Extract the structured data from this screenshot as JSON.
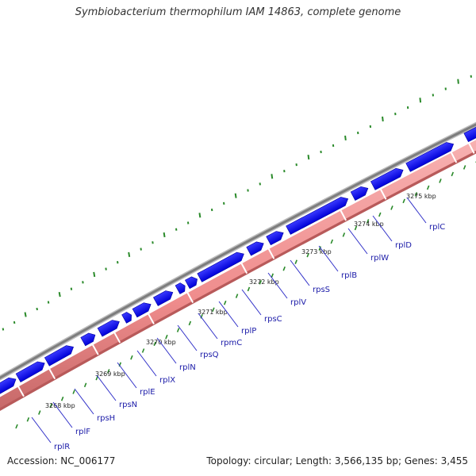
{
  "title": "Symbiobacterium thermophilum IAM 14863, complete genome",
  "footer": {
    "accession": "Accession: NC_006177",
    "stats": "Topology: circular; Length: 3,566,135 bp; Genes: 3,455"
  },
  "scale": {
    "ticks": [
      "3268 kbp",
      "3269 kbp",
      "3270 kbp",
      "3271 kbp",
      "3272 kbp",
      "3273 kbp",
      "3274 kbp",
      "3275 kbp"
    ]
  },
  "genes": [
    {
      "name": "rplR"
    },
    {
      "name": "rplF"
    },
    {
      "name": "rpsH"
    },
    {
      "name": "rpsN"
    },
    {
      "name": "rplE"
    },
    {
      "name": "rplX"
    },
    {
      "name": "rplN"
    },
    {
      "name": "rpsQ"
    },
    {
      "name": "rpmC"
    },
    {
      "name": "rplP"
    },
    {
      "name": "rpsC"
    },
    {
      "name": "rplV"
    },
    {
      "name": "rpsS"
    },
    {
      "name": "rplB"
    },
    {
      "name": "rplW"
    },
    {
      "name": "rplD"
    },
    {
      "name": "rplC"
    }
  ],
  "colors": {
    "backbone": "#8c8c8c",
    "cds_forward": "#1010ee",
    "gene_track": "#f08a8a",
    "gc_ticks": "#2a8a2a",
    "label": "#1a1aa8"
  }
}
